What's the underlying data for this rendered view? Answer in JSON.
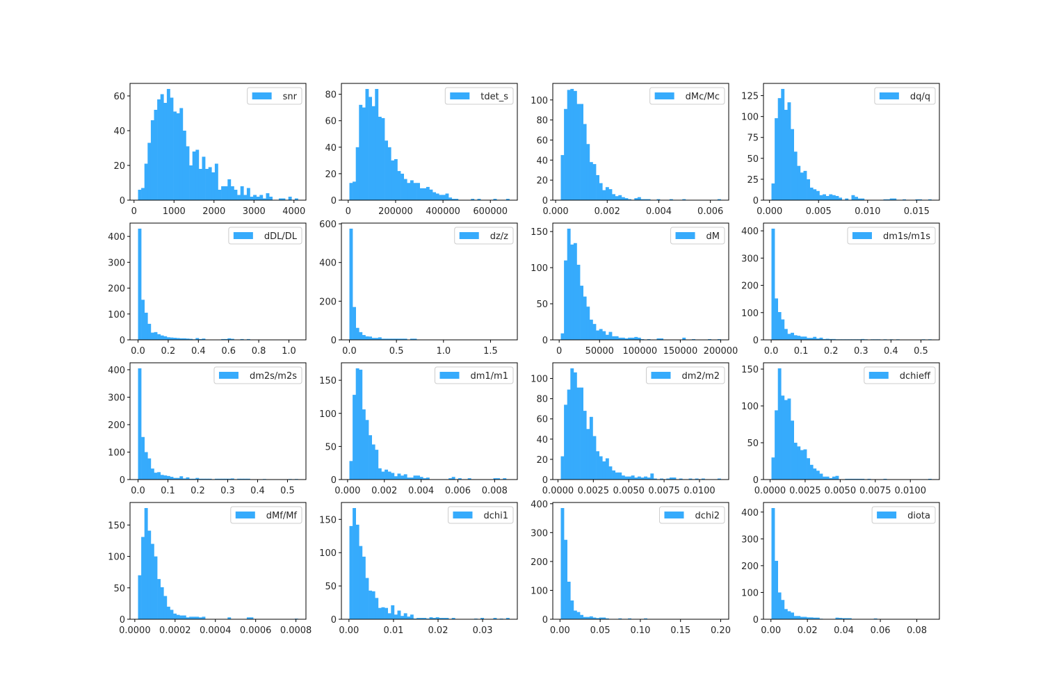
{
  "bar_color": "#36abfc",
  "chart_data": [
    {
      "type": "bar",
      "legend": "snr",
      "bin_range": [
        100,
        4100
      ],
      "ylim": [
        0,
        67.2
      ],
      "xticks": [
        0,
        1000,
        2000,
        3000,
        4000
      ],
      "xtick_labels": [
        "0",
        "1000",
        "2000",
        "3000",
        "4000"
      ],
      "yticks": [
        0,
        20,
        40,
        60
      ],
      "ytick_labels": [
        "0",
        "20",
        "40",
        "60"
      ],
      "values": [
        6,
        7,
        21,
        33,
        46,
        52,
        58,
        61,
        56,
        64,
        59,
        51,
        50,
        53,
        40,
        31,
        20,
        28,
        29,
        18,
        25,
        18,
        19,
        16,
        21,
        6,
        8,
        8,
        12,
        8,
        6,
        3,
        8,
        3,
        7,
        2,
        3,
        2,
        3,
        1,
        4,
        2,
        0,
        0,
        1,
        1,
        0,
        2,
        0,
        1
      ]
    },
    {
      "type": "bar",
      "legend": "tdet_s",
      "bin_range": [
        5000,
        680000
      ],
      "ylim": [
        0,
        88.2
      ],
      "xticks": [
        0,
        200000,
        400000,
        600000
      ],
      "xtick_labels": [
        "0",
        "200000",
        "400000",
        "600000"
      ],
      "yticks": [
        0,
        20,
        40,
        60,
        80
      ],
      "ytick_labels": [
        "0",
        "20",
        "40",
        "60",
        "80"
      ],
      "values": [
        13,
        14,
        40,
        72,
        70,
        84,
        78,
        71,
        84,
        63,
        62,
        45,
        40,
        30,
        31,
        22,
        20,
        16,
        13,
        15,
        13,
        13,
        9,
        9,
        10,
        8,
        6,
        5,
        4,
        4,
        5,
        2,
        1,
        1,
        0,
        0,
        0,
        0,
        1,
        0,
        1,
        0,
        0,
        0,
        0,
        1,
        0,
        0,
        0,
        1
      ]
    },
    {
      "type": "bar",
      "legend": "dMc/Mc",
      "bin_range": [
        0.0002,
        0.0064
      ],
      "ylim": [
        0,
        116.5
      ],
      "xticks": [
        0,
        0.002,
        0.004,
        0.006
      ],
      "xtick_labels": [
        "0.000",
        "0.002",
        "0.004",
        "0.006"
      ],
      "yticks": [
        0,
        20,
        40,
        60,
        80,
        100
      ],
      "ytick_labels": [
        "0",
        "20",
        "40",
        "60",
        "80",
        "100"
      ],
      "values": [
        45,
        91,
        110,
        111,
        109,
        96,
        96,
        76,
        56,
        38,
        36,
        25,
        17,
        10,
        13,
        11,
        6,
        4,
        5,
        3,
        2,
        1,
        0,
        2,
        3,
        1,
        1,
        1,
        0,
        0,
        1,
        0,
        0,
        0,
        1,
        0,
        0,
        0,
        1,
        0,
        0,
        0,
        0,
        0,
        0,
        0,
        0,
        0,
        0,
        1
      ]
    },
    {
      "type": "bar",
      "legend": "dq/q",
      "bin_range": [
        0.0002,
        0.0165
      ],
      "ylim": [
        0,
        139.6
      ],
      "xticks": [
        0,
        0.005,
        0.01,
        0.015
      ],
      "xtick_labels": [
        "0.000",
        "0.005",
        "0.010",
        "0.015"
      ],
      "yticks": [
        0,
        25,
        50,
        75,
        100,
        125
      ],
      "ytick_labels": [
        "0",
        "25",
        "50",
        "75",
        "100",
        "125"
      ],
      "values": [
        20,
        98,
        122,
        133,
        108,
        117,
        85,
        58,
        41,
        33,
        35,
        25,
        15,
        13,
        11,
        6,
        7,
        5,
        7,
        6,
        5,
        3,
        0,
        2,
        0,
        6,
        4,
        2,
        2,
        0,
        0,
        0,
        0,
        0,
        0,
        1,
        1,
        2,
        2,
        0,
        0,
        1,
        0,
        0,
        0,
        1,
        1,
        0,
        0,
        1
      ]
    },
    {
      "type": "bar",
      "legend": "dDL/DL",
      "bin_range": [
        0,
        1.06
      ],
      "ylim": [
        0,
        451.5
      ],
      "xticks": [
        0,
        0.2,
        0.4,
        0.6,
        0.8,
        1.0
      ],
      "xtick_labels": [
        "0.0",
        "0.2",
        "0.4",
        "0.6",
        "0.8",
        "1.0"
      ],
      "yticks": [
        0,
        100,
        200,
        300,
        400
      ],
      "ytick_labels": [
        "0",
        "100",
        "200",
        "300",
        "400"
      ],
      "values": [
        430,
        155,
        105,
        62,
        28,
        30,
        22,
        17,
        14,
        10,
        9,
        8,
        7,
        6,
        6,
        5,
        4,
        2,
        7,
        3,
        5,
        0,
        0,
        0,
        0,
        0,
        3,
        3,
        6,
        4,
        0,
        0,
        3,
        0,
        3,
        0,
        0,
        0,
        0,
        0,
        0,
        0,
        0,
        0,
        0,
        0,
        0,
        0,
        0,
        1
      ]
    },
    {
      "type": "bar",
      "legend": "dz/z",
      "bin_range": [
        0,
        1.7
      ],
      "ylim": [
        0,
        603.75
      ],
      "xticks": [
        0,
        0.5,
        1.0,
        1.5
      ],
      "xtick_labels": [
        "0.0",
        "0.5",
        "1.0",
        "1.5"
      ],
      "yticks": [
        0,
        200,
        400,
        600
      ],
      "ytick_labels": [
        "0",
        "200",
        "400",
        "600"
      ],
      "values": [
        575,
        170,
        62,
        40,
        25,
        18,
        17,
        10,
        10,
        13,
        6,
        6,
        6,
        6,
        6,
        6,
        6,
        6,
        0,
        6,
        6,
        0,
        0,
        0,
        0,
        0,
        0,
        0,
        0,
        0,
        0,
        0,
        0,
        0,
        0,
        0,
        0,
        0,
        0,
        0,
        0,
        0,
        0,
        0,
        0,
        0,
        0,
        0,
        0,
        1
      ]
    },
    {
      "type": "bar",
      "legend": "dM",
      "bin_range": [
        2000,
        200000
      ],
      "ylim": [
        0,
        161.7
      ],
      "xticks": [
        0,
        50000,
        100000,
        150000,
        200000
      ],
      "xtick_labels": [
        "0",
        "50000",
        "100000",
        "150000",
        "200000"
      ],
      "yticks": [
        0,
        50,
        100,
        150
      ],
      "ytick_labels": [
        "0",
        "50",
        "100",
        "150"
      ],
      "values": [
        9,
        110,
        154,
        132,
        134,
        104,
        75,
        60,
        46,
        28,
        22,
        13,
        15,
        12,
        7,
        11,
        5,
        5,
        3,
        3,
        2,
        3,
        3,
        4,
        3,
        1,
        0,
        1,
        0,
        0,
        2,
        2,
        0,
        0,
        0,
        0,
        0,
        0,
        3,
        0,
        0,
        1,
        0,
        0,
        0,
        0,
        1,
        0,
        0,
        1
      ]
    },
    {
      "type": "bar",
      "legend": "dm1s/m1s",
      "bin_range": [
        0.001,
        0.535
      ],
      "ylim": [
        0,
        428.4
      ],
      "xticks": [
        0,
        0.1,
        0.2,
        0.3,
        0.4,
        0.5
      ],
      "xtick_labels": [
        "0.0",
        "0.1",
        "0.2",
        "0.3",
        "0.4",
        "0.5"
      ],
      "yticks": [
        0,
        100,
        200,
        300,
        400
      ],
      "ytick_labels": [
        "0",
        "100",
        "200",
        "300",
        "400"
      ],
      "values": [
        408,
        152,
        102,
        75,
        40,
        22,
        26,
        17,
        15,
        12,
        12,
        7,
        7,
        11,
        5,
        8,
        3,
        4,
        3,
        3,
        2,
        2,
        2,
        2,
        2,
        2,
        2,
        2,
        3,
        2,
        0,
        2,
        2,
        2,
        0,
        2,
        0,
        2,
        0,
        2,
        0,
        0,
        0,
        0,
        0,
        0,
        0,
        2,
        0,
        2
      ]
    },
    {
      "type": "bar",
      "legend": "dm2s/m2s",
      "bin_range": [
        0,
        0.535
      ],
      "ylim": [
        0,
        425.25
      ],
      "xticks": [
        0,
        0.1,
        0.2,
        0.3,
        0.4,
        0.5
      ],
      "xtick_labels": [
        "0.0",
        "0.1",
        "0.2",
        "0.3",
        "0.4",
        "0.5"
      ],
      "yticks": [
        0,
        100,
        200,
        300,
        400
      ],
      "ytick_labels": [
        "0",
        "100",
        "200",
        "300",
        "400"
      ],
      "values": [
        405,
        155,
        100,
        77,
        40,
        25,
        27,
        17,
        15,
        13,
        10,
        6,
        6,
        12,
        4,
        8,
        3,
        3,
        6,
        3,
        3,
        3,
        3,
        0,
        3,
        3,
        3,
        3,
        3,
        4,
        0,
        3,
        3,
        3,
        3,
        0,
        0,
        0,
        0,
        2,
        0,
        0,
        0,
        0,
        0,
        0,
        0,
        2,
        0,
        2
      ]
    },
    {
      "type": "bar",
      "legend": "dm1/m1",
      "bin_range": [
        0.0001,
        0.0088
      ],
      "ylim": [
        0,
        176.4
      ],
      "xticks": [
        0,
        0.002,
        0.004,
        0.006,
        0.008
      ],
      "xtick_labels": [
        "0.000",
        "0.002",
        "0.004",
        "0.006",
        "0.008"
      ],
      "yticks": [
        0,
        50,
        100,
        150
      ],
      "ytick_labels": [
        "0",
        "50",
        "100",
        "150"
      ],
      "values": [
        28,
        128,
        168,
        166,
        106,
        90,
        67,
        53,
        45,
        17,
        12,
        15,
        12,
        10,
        5,
        9,
        6,
        8,
        3,
        3,
        6,
        6,
        4,
        2,
        3,
        0,
        0,
        0,
        0,
        0,
        0,
        2,
        4,
        0,
        2,
        0,
        0,
        2,
        0,
        0,
        0,
        0,
        0,
        0,
        0,
        2,
        2,
        0,
        2,
        0
      ]
    },
    {
      "type": "bar",
      "legend": "dm2/m2",
      "bin_range": [
        0.0002,
        0.0115
      ],
      "ylim": [
        0,
        115.5
      ],
      "xticks": [
        0,
        0.0025,
        0.005,
        0.0075,
        0.01
      ],
      "xtick_labels": [
        "0.0000",
        "0.0025",
        "0.0050",
        "0.0075",
        "0.0100"
      ],
      "yticks": [
        0,
        20,
        40,
        60,
        80,
        100
      ],
      "ytick_labels": [
        "0",
        "20",
        "40",
        "60",
        "80",
        "100"
      ],
      "values": [
        23,
        74,
        89,
        110,
        106,
        91,
        91,
        68,
        50,
        62,
        43,
        28,
        23,
        18,
        21,
        13,
        9,
        7,
        7,
        4,
        3,
        3,
        4,
        2,
        3,
        2,
        3,
        2,
        6,
        1,
        0,
        1,
        0,
        1,
        2,
        2,
        0,
        1,
        0,
        0,
        1,
        0,
        1,
        0,
        1,
        0,
        0,
        0,
        0,
        1
      ]
    },
    {
      "type": "bar",
      "legend": "dchieff",
      "bin_range": [
        0.0001,
        0.0115
      ],
      "ylim": [
        0,
        158.55
      ],
      "xticks": [
        0,
        0.0025,
        0.005,
        0.0075,
        0.01
      ],
      "xtick_labels": [
        "0.0000",
        "0.0025",
        "0.0050",
        "0.0075",
        "0.0100"
      ],
      "yticks": [
        0,
        50,
        100,
        150
      ],
      "ytick_labels": [
        "0",
        "50",
        "100",
        "150"
      ],
      "values": [
        30,
        94,
        151,
        114,
        108,
        110,
        80,
        50,
        45,
        40,
        41,
        29,
        20,
        15,
        12,
        8,
        4,
        4,
        2,
        4,
        5,
        0,
        0,
        1,
        1,
        1,
        1,
        1,
        1,
        0,
        1,
        0,
        0,
        0,
        0,
        1,
        0,
        0,
        0,
        0,
        0,
        0,
        0,
        0,
        0,
        0,
        0,
        0,
        0,
        1
      ]
    },
    {
      "type": "bar",
      "legend": "dMf/Mf",
      "bin_range": [
        1.6e-05,
        0.00081
      ],
      "ylim": [
        0,
        185.85
      ],
      "xticks": [
        0,
        0.0002,
        0.0004,
        0.0006,
        0.0008
      ],
      "xtick_labels": [
        "0.0000",
        "0.0002",
        "0.0004",
        "0.0006",
        "0.0008"
      ],
      "yticks": [
        0,
        50,
        100,
        150
      ],
      "ytick_labels": [
        "0",
        "50",
        "100",
        "150"
      ],
      "values": [
        70,
        131,
        177,
        141,
        120,
        100,
        64,
        51,
        37,
        20,
        15,
        9,
        7,
        6,
        6,
        3,
        4,
        4,
        4,
        3,
        4,
        0,
        0,
        0,
        0,
        0,
        0,
        0,
        3,
        0,
        0,
        0,
        0,
        0,
        3,
        3,
        0,
        0,
        0,
        0,
        0,
        0,
        0,
        0,
        0,
        0,
        0,
        0,
        0,
        1
      ]
    },
    {
      "type": "bar",
      "legend": "dchi1",
      "bin_range": [
        0.0001,
        0.036
      ],
      "ylim": [
        0,
        175.35
      ],
      "xticks": [
        0,
        0.01,
        0.02,
        0.03
      ],
      "xtick_labels": [
        "0.00",
        "0.01",
        "0.02",
        "0.03"
      ],
      "yticks": [
        0,
        50,
        100,
        150
      ],
      "ytick_labels": [
        "0",
        "50",
        "100",
        "150"
      ],
      "values": [
        140,
        167,
        142,
        110,
        94,
        62,
        43,
        42,
        32,
        17,
        18,
        17,
        9,
        21,
        7,
        13,
        5,
        9,
        4,
        7,
        1,
        2,
        2,
        2,
        1,
        3,
        2,
        3,
        2,
        2,
        2,
        0,
        2,
        0,
        0,
        0,
        0,
        0,
        0,
        1,
        0,
        2,
        0,
        0,
        0,
        2,
        0,
        1,
        0,
        2
      ]
    },
    {
      "type": "bar",
      "legend": "dchi2",
      "bin_range": [
        0.001,
        0.2
      ],
      "ylim": [
        0,
        404.25
      ],
      "xticks": [
        0,
        0.05,
        0.1,
        0.15,
        0.2
      ],
      "xtick_labels": [
        "0.00",
        "0.05",
        "0.10",
        "0.15",
        "0.20"
      ],
      "yticks": [
        0,
        100,
        200,
        300,
        400
      ],
      "ytick_labels": [
        "0",
        "100",
        "200",
        "300",
        "400"
      ],
      "values": [
        385,
        275,
        130,
        65,
        30,
        25,
        15,
        8,
        8,
        10,
        6,
        4,
        6,
        6,
        3,
        0,
        0,
        0,
        3,
        0,
        0,
        3,
        0,
        0,
        0,
        0,
        3,
        0,
        0,
        0,
        0,
        0,
        0,
        0,
        0,
        0,
        0,
        0,
        0,
        0,
        0,
        0,
        0,
        0,
        0,
        0,
        0,
        0,
        0,
        1
      ]
    },
    {
      "type": "bar",
      "legend": "diota",
      "bin_range": [
        0.0003,
        0.088
      ],
      "ylim": [
        0,
        435.75
      ],
      "xticks": [
        0,
        0.02,
        0.04,
        0.06,
        0.08
      ],
      "xtick_labels": [
        "0.00",
        "0.02",
        "0.04",
        "0.06",
        "0.08"
      ],
      "yticks": [
        0,
        100,
        200,
        300,
        400
      ],
      "ytick_labels": [
        "0",
        "100",
        "200",
        "300",
        "400"
      ],
      "values": [
        415,
        218,
        100,
        72,
        38,
        30,
        25,
        12,
        12,
        9,
        9,
        7,
        7,
        6,
        6,
        2,
        0,
        0,
        0,
        0,
        6,
        5,
        4,
        4,
        4,
        0,
        0,
        0,
        0,
        0,
        0,
        0,
        3,
        0,
        0,
        0,
        0,
        0,
        0,
        0,
        0,
        0,
        0,
        0,
        0,
        0,
        0,
        0,
        0,
        1
      ]
    }
  ]
}
